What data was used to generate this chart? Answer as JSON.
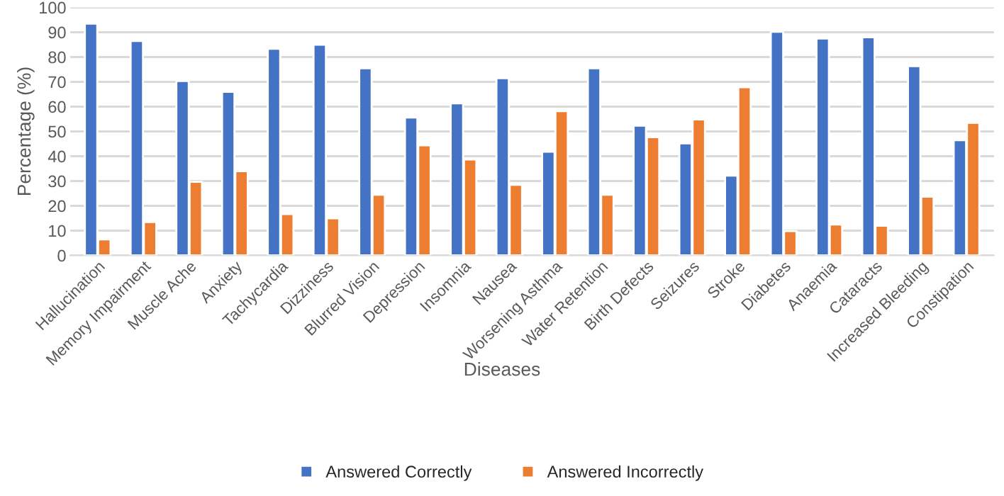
{
  "chart_data": {
    "type": "bar",
    "xlabel": "Diseases",
    "ylabel": "Percentage (%)",
    "categories": [
      "Hallucination",
      "Memory Impairment",
      "Muscle Ache",
      "Anxiety",
      "Tachycardia",
      "Dizziness",
      "Blurred Vision",
      "Depression",
      "Insomnia",
      "Nausea",
      "Worsening Asthma",
      "Water Retention",
      "Birth Defects",
      "Seizures",
      "Stroke",
      "Diabetes",
      "Anaemia",
      "Cataracts",
      "Increased Bleeding",
      "Constipation"
    ],
    "series": [
      {
        "name": "Answered Correctly",
        "color": "#4472c4",
        "values": [
          93.5,
          86.5,
          70.3,
          66,
          83.3,
          85,
          75.5,
          55.6,
          61.3,
          71.5,
          41.8,
          75.5,
          52.3,
          45.2,
          32.2,
          90.2,
          87.5,
          88,
          76.3,
          46.5
        ]
      },
      {
        "name": "Answered Incorrectly",
        "color": "#ed7d31",
        "values": [
          6.5,
          13.5,
          29.7,
          34,
          16.7,
          15,
          24.5,
          44.4,
          38.7,
          28.5,
          58.2,
          24.5,
          47.7,
          54.8,
          67.8,
          9.8,
          12.5,
          12,
          23.7,
          53.5
        ]
      }
    ],
    "ylim": [
      0,
      100
    ],
    "yticks": [
      0,
      10,
      20,
      30,
      40,
      50,
      60,
      70,
      80,
      90,
      100
    ],
    "grid": "y",
    "legend": "bottom"
  }
}
